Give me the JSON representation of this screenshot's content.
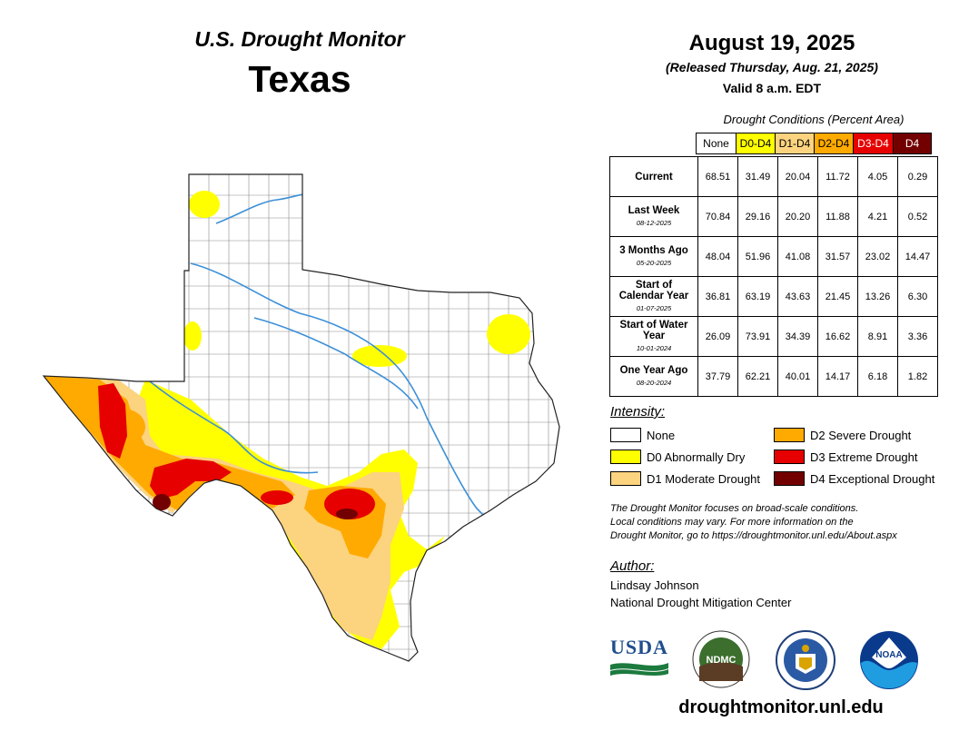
{
  "map": {
    "title": "U.S. Drought Monitor",
    "state": "Texas"
  },
  "header": {
    "date": "August 19, 2025",
    "released": "(Released Thursday, Aug. 21, 2025)",
    "valid": "Valid 8 a.m. EDT"
  },
  "conditions": {
    "title": "Drought Conditions (Percent Area)",
    "columns": [
      {
        "label": "None",
        "bg": "#ffffff",
        "fg": "#000000"
      },
      {
        "label": "D0-D4",
        "bg": "#ffff00",
        "fg": "#000000"
      },
      {
        "label": "D1-D4",
        "bg": "#fcd37f",
        "fg": "#000000"
      },
      {
        "label": "D2-D4",
        "bg": "#ffaa00",
        "fg": "#000000"
      },
      {
        "label": "D3-D4",
        "bg": "#e60000",
        "fg": "#ffffff"
      },
      {
        "label": "D4",
        "bg": "#730000",
        "fg": "#ffffff"
      }
    ],
    "rows": [
      {
        "label": "Current",
        "date": "",
        "values": [
          "68.51",
          "31.49",
          "20.04",
          "11.72",
          "4.05",
          "0.29"
        ]
      },
      {
        "label": "Last Week",
        "date": "08-12-2025",
        "values": [
          "70.84",
          "29.16",
          "20.20",
          "11.88",
          "4.21",
          "0.52"
        ]
      },
      {
        "label": "3 Months Ago",
        "date": "05-20-2025",
        "values": [
          "48.04",
          "51.96",
          "41.08",
          "31.57",
          "23.02",
          "14.47"
        ]
      },
      {
        "label": "Start of Calendar Year",
        "date": "01-07-2025",
        "values": [
          "36.81",
          "63.19",
          "43.63",
          "21.45",
          "13.26",
          "6.30"
        ]
      },
      {
        "label": "Start of Water Year",
        "date": "10-01-2024",
        "values": [
          "26.09",
          "73.91",
          "34.39",
          "16.62",
          "8.91",
          "3.36"
        ]
      },
      {
        "label": "One Year Ago",
        "date": "08-20-2024",
        "values": [
          "37.79",
          "62.21",
          "40.01",
          "14.17",
          "6.18",
          "1.82"
        ]
      }
    ]
  },
  "intensity": {
    "title": "Intensity:",
    "items": [
      {
        "label": "None",
        "color": "#ffffff"
      },
      {
        "label": "D0 Abnormally Dry",
        "color": "#ffff00"
      },
      {
        "label": "D1 Moderate Drought",
        "color": "#fcd37f"
      },
      {
        "label": "D2 Severe Drought",
        "color": "#ffaa00"
      },
      {
        "label": "D3 Extreme Drought",
        "color": "#e60000"
      },
      {
        "label": "D4 Exceptional Drought",
        "color": "#730000"
      }
    ]
  },
  "note": {
    "line1": "The Drought Monitor focuses on broad-scale conditions.",
    "line2": "Local conditions may vary. For more information on the",
    "line3": "Drought Monitor, go to https://droughtmonitor.unl.edu/About.aspx"
  },
  "author": {
    "title": "Author:",
    "name": "Lindsay Johnson",
    "org": "National Drought Mitigation Center"
  },
  "logos": {
    "usda": "USDA",
    "ndmc": "NDMC",
    "noaa": "NOAA"
  },
  "footer": {
    "url": "droughtmonitor.unl.edu"
  }
}
